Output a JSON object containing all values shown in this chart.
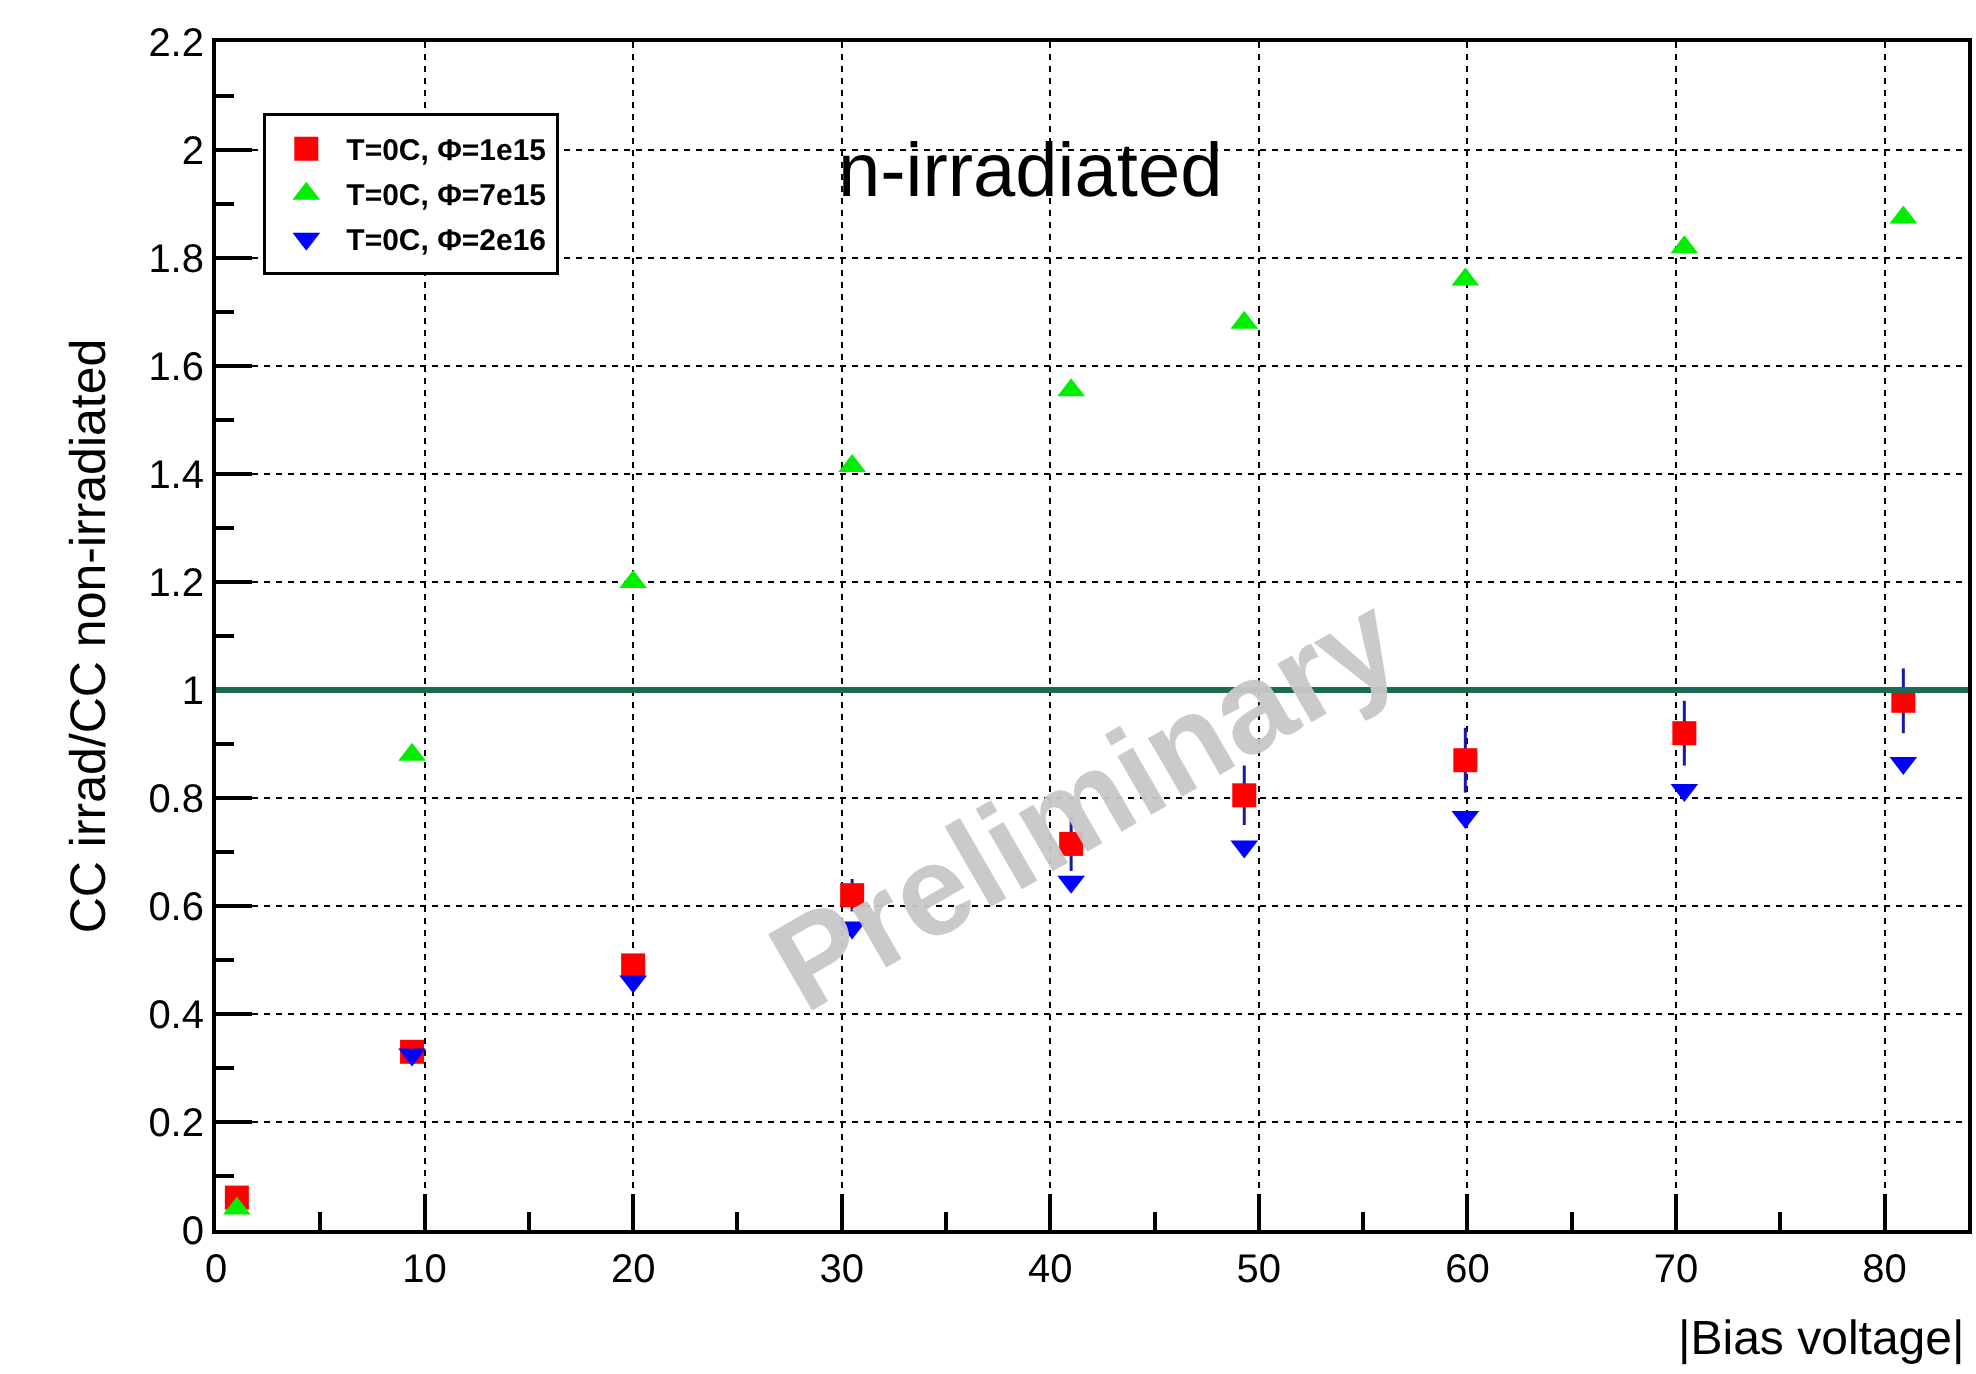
{
  "chart_data": {
    "type": "scatter",
    "title": "n-irradiated",
    "xlabel": "|Bias voltage|",
    "ylabel": "CC irrad/CC non-irradiated",
    "x": [
      1,
      9.4,
      20,
      30.5,
      41,
      49.3,
      59.9,
      70.4,
      80.9
    ],
    "series": [
      {
        "name": "T=0C, Φ=1e15",
        "color": "#ff0000",
        "marker": "square",
        "values": [
          0.06,
          0.33,
          0.49,
          0.62,
          0.715,
          0.805,
          0.87,
          0.92,
          0.98
        ],
        "errors": [
          null,
          null,
          null,
          0.03,
          0.05,
          0.055,
          0.06,
          0.06,
          0.06
        ]
      },
      {
        "name": "T=0C, Φ=7e15",
        "color": "#00ee00",
        "marker": "triangle",
        "values": [
          0.04,
          0.88,
          1.2,
          1.415,
          1.555,
          1.68,
          1.76,
          1.82,
          1.875
        ]
      },
      {
        "name": "T=0C, Φ=2e16",
        "color": "#0000ff",
        "marker": "triangle-down",
        "values": [
          null,
          0.325,
          0.46,
          0.56,
          0.645,
          0.71,
          0.765,
          0.815,
          0.865
        ]
      }
    ],
    "xlim": [
      0,
      84
    ],
    "xticks": [
      0,
      10,
      20,
      30,
      40,
      50,
      60,
      70,
      80
    ],
    "ylim": [
      0,
      2.2
    ],
    "yticks": [
      0,
      0.2,
      0.4,
      0.6,
      0.8,
      1,
      1.2,
      1.4,
      1.6,
      1.8,
      2,
      2.2
    ],
    "ref_lines": [
      {
        "axis": "y",
        "value": 1,
        "color": "#1a6b55",
        "line_style": "solid"
      }
    ],
    "annotations": [
      "Preliminary"
    ],
    "grid": true,
    "line_style": "dotted",
    "legend": "top left"
  }
}
